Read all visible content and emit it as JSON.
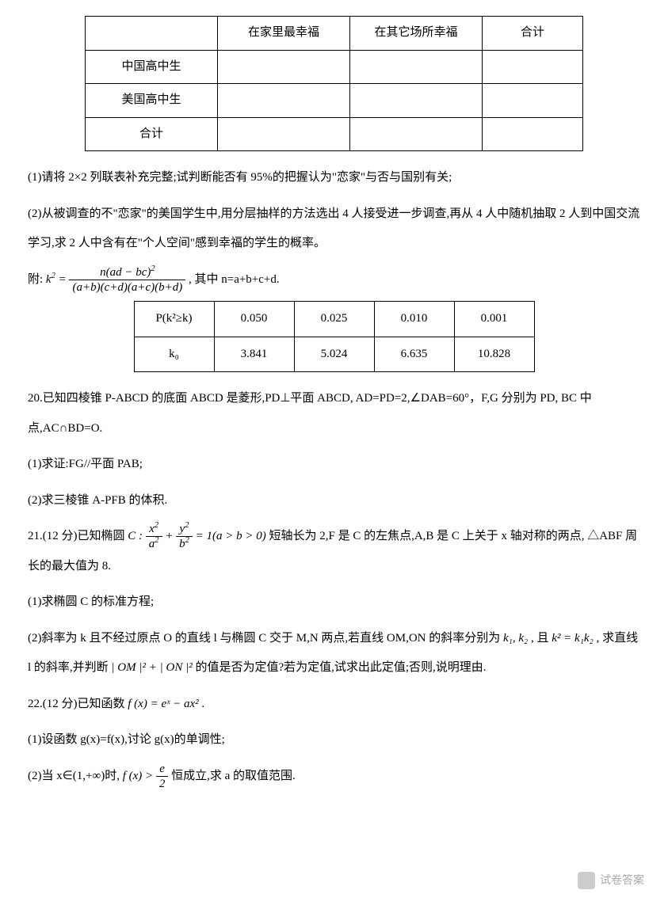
{
  "table1": {
    "headers": [
      "",
      "在家里最幸福",
      "在其它场所幸福",
      "合计"
    ],
    "rows": [
      [
        "中国高中生",
        "",
        "",
        ""
      ],
      [
        "美国高中生",
        "",
        "",
        ""
      ],
      [
        "合计",
        "",
        "",
        ""
      ]
    ]
  },
  "q_pre": {
    "p1": "(1)请将 2×2 列联表补充完整;试判断能否有 95%的把握认为\"恋家\"与否与国别有关;",
    "p2": "(2)从被调查的不\"恋家\"的美国学生中,用分层抽样的方法选出 4 人接受进一步调查,再从 4 人中随机抽取 2 人到中国交流学习,求 2 人中含有在\"个人空间\"感到幸福的学生的概率。",
    "p3_pre": "附:",
    "p3_lhs": "k",
    "p3_num": "n(ad − bc)",
    "p3_den": "(a+b)(c+d)(a+c)(b+d)",
    "p3_suf": ", 其中 n=a+b+c+d."
  },
  "table2": {
    "r1": [
      "P(k²≥k)",
      "0.050",
      "0.025",
      "0.010",
      "0.001"
    ],
    "r2": [
      "k₀",
      "3.841",
      "5.024",
      "6.635",
      "10.828"
    ]
  },
  "q20": {
    "stem": "20.已知四棱锥 P-ABCD 的底面 ABCD 是菱形,PD⊥平面 ABCD, AD=PD=2,∠DAB=60°，F,G 分别为 PD, BC 中点,AC∩BD=O.",
    "p1": "(1)求证:FG//平面 PAB;",
    "p2": "(2)求三棱锥 A-PFB 的体积."
  },
  "q21": {
    "stem_pre": "21.(12 分)已知椭圆",
    "stem_C": "C",
    "stem_colon": ":",
    "stem_frac1_num": "x",
    "stem_frac1_den": "a",
    "stem_plus": "+",
    "stem_frac2_num": "y",
    "stem_frac2_den": "b",
    "stem_eq": "= 1(a > b > 0)",
    "stem_suf": " 短轴长为 2,F 是 C 的左焦点,A,B 是 C 上关于 x 轴对称的两点, △ABF 周长的最大值为 8.",
    "p1": "(1)求椭圆 C 的标准方程;",
    "p2_a": "(2)斜率为 k 且不经过原点 O 的直线 l 与椭圆 C 交于 M,N 两点,若直线 OM,ON 的斜率分别为",
    "p2_k1": "k₁",
    "p2_k2": "k₂",
    "p2_b": ", 且",
    "p2_eq": "k² = k₁k₂",
    "p2_c": ", 求直线 l 的斜率,并判断",
    "p2_om": "| OM |² + | ON |²",
    "p2_d": " 的值是否为定值?若为定值,试求出此定值;否则,说明理由."
  },
  "q22": {
    "stem_pre": "22.(12 分)已知函数 ",
    "stem_fx": "f (x) = eˣ − ax²",
    "stem_suf": ".",
    "p1": "(1)设函数 g(x)=f(x),讨论 g(x)的单调性;",
    "p2_a": "(2)当 x∈(1,+∞)时, ",
    "p2_fx": "f (x) >",
    "p2_num": "e",
    "p2_den": "2",
    "p2_b": " 恒成立,求 a 的取值范围."
  },
  "watermark": "试卷答案"
}
